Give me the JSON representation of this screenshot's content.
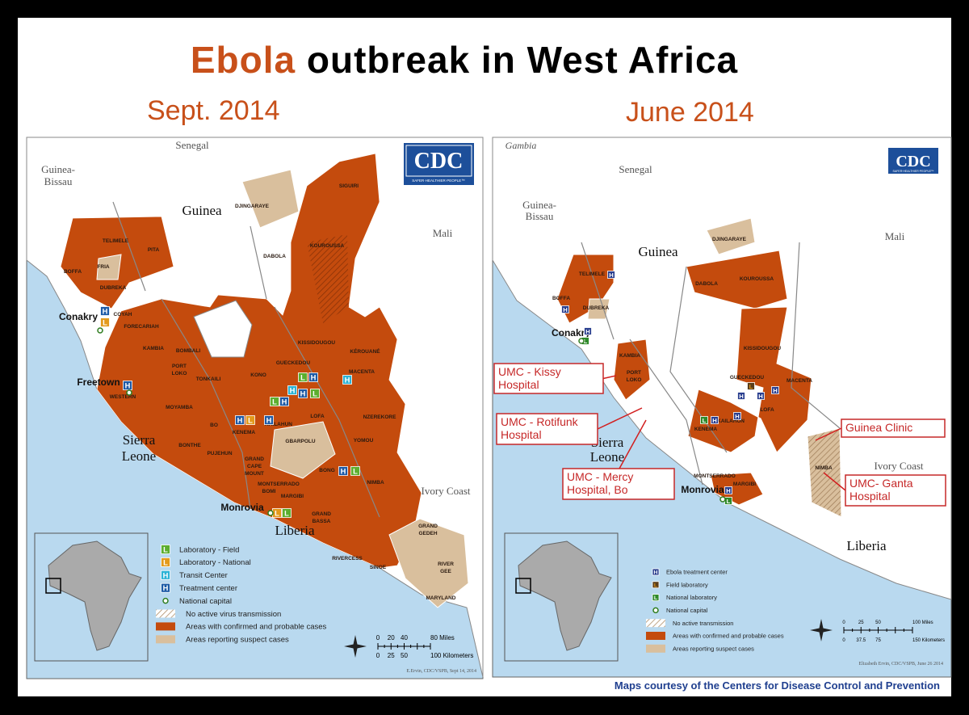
{
  "title": {
    "highlight": "Ebola",
    "rest": "outbreak in West Africa"
  },
  "maps": [
    {
      "date": "Sept. 2014",
      "logo": "CDC",
      "logo_tagline": "SAFER·HEALTHIER·PEOPLE™",
      "labels": [
        "Senegal",
        "Guinea-",
        "Bissau",
        "Guinea",
        "Mali",
        "DJINGARAYE",
        "SIGUIRI",
        "KOUROUSSA",
        "DABOLA",
        "TELIMELE",
        "PITA",
        "FRIA",
        "BOFFA",
        "DUBREKA",
        "COYAH",
        "Conakry",
        "FORECARIAH",
        "KAMBIA",
        "BOMBALI",
        "KISSIDOUGOU",
        "KÉROUANÉ",
        "PORT",
        "LOKO",
        "TONKAILI",
        "KONO",
        "GUECKEDOU",
        "MACENTA",
        "Freetown",
        "WESTERN",
        "MOYAMBA",
        "BO",
        "KENEMA",
        "KAILAHUN",
        "LOFA",
        "NZEREKORE",
        "YOMOU",
        "BONTHE",
        "PUJEHUN",
        "GBARPOLU",
        "GRAND",
        "CAPE",
        "MOUNT",
        "Sierra",
        "Leone",
        "BONG",
        "NIMBA",
        "MONTSERRADO",
        "BOMI",
        "MARGIBI",
        "Monrovia",
        "Liberia",
        "GRAND",
        "BASSA",
        "Ivory Coast",
        "RIVERCESS",
        "GRAND",
        "GEDEH",
        "SINOE",
        "RIVER",
        "GEE",
        "MARYLAND"
      ],
      "legend": [
        {
          "symbol": "L",
          "label": "Laboratory - Field",
          "color": "#5cae2e"
        },
        {
          "symbol": "L",
          "label": "Laboratory - National",
          "color": "#e39a1c"
        },
        {
          "symbol": "H",
          "label": "Transit Center",
          "color": "#2bb3d6"
        },
        {
          "symbol": "H",
          "label": "Treatment center",
          "color": "#1d5aa6"
        },
        {
          "label": "National capital",
          "color": "#2f7d1f"
        },
        {
          "label": "No active virus transmission",
          "color": "#b08f6a"
        },
        {
          "label": "Areas with confirmed and probable cases",
          "color": "#c44b0d"
        },
        {
          "label": "Areas reporting suspect cases",
          "color": "#d9bf9d"
        }
      ],
      "scale": {
        "miles": [
          "0",
          "20",
          "40",
          "80 Miles"
        ],
        "km": [
          "0",
          "25",
          "50",
          "100 Kilometers"
        ]
      },
      "credit": "E.Ervin, CDC/VSPB, Sept 14, 2014"
    },
    {
      "date": "June 2014",
      "logo": "CDC",
      "logo_tagline": "SAFER·HEALTHIER·PEOPLE™",
      "labels": [
        "Gambia",
        "Senegal",
        "Guinea-",
        "Bissau",
        "Guinea",
        "Mali",
        "DJINGARAYE",
        "DABOLA",
        "KOUROUSSA",
        "TELIMELE",
        "BOFFA",
        "DUBREKA",
        "Conakry",
        "KAMBIA",
        "PORT",
        "LOKO",
        "KISSIDOUGOU",
        "GUECKEDOU",
        "MACENTA",
        "KAILAHUN",
        "LOFA",
        "KENEMA",
        "Sierra",
        "Leone",
        "NIMBA",
        "Ivory Coast",
        "MONTSERRADO",
        "MARGIBI",
        "Monrovia",
        "Liberia"
      ],
      "legend": [
        {
          "symbol": "H",
          "label": "Ebola treatment center",
          "color": "#2a3f8f"
        },
        {
          "symbol": "L",
          "label": "Field laboratory",
          "color": "#5a3d1a"
        },
        {
          "symbol": "L",
          "label": "National laboratory",
          "color": "#2e8a2a"
        },
        {
          "label": "National capital",
          "color": "#2f7d1f"
        },
        {
          "label": "No active transmission",
          "color": "#b08f6a"
        },
        {
          "label": "Areas with confirmed and probable cases",
          "color": "#c44b0d"
        },
        {
          "label": "Areas reporting suspect cases",
          "color": "#d9bf9d"
        }
      ],
      "callouts": [
        {
          "lines": [
            "UMC - Kissy",
            "Hospital"
          ]
        },
        {
          "lines": [
            "UMC - Rotifunk",
            "Hospital"
          ]
        },
        {
          "lines": [
            "UMC - Mercy",
            "Hospital, Bo"
          ]
        },
        {
          "lines": [
            "Guinea Clinic"
          ]
        },
        {
          "lines": [
            "UMC- Ganta",
            "Hospital"
          ]
        }
      ],
      "scale": {
        "miles": [
          "0",
          "25",
          "50",
          "100 Miles"
        ],
        "km": [
          "0",
          "37.5",
          "75",
          "150 Kilometers"
        ]
      },
      "credit": "Elizabeth Ervin, CDC/VSPB, June 26 2014"
    }
  ],
  "footer": "Maps courtesy of the Centers for Disease Control and Prevention"
}
